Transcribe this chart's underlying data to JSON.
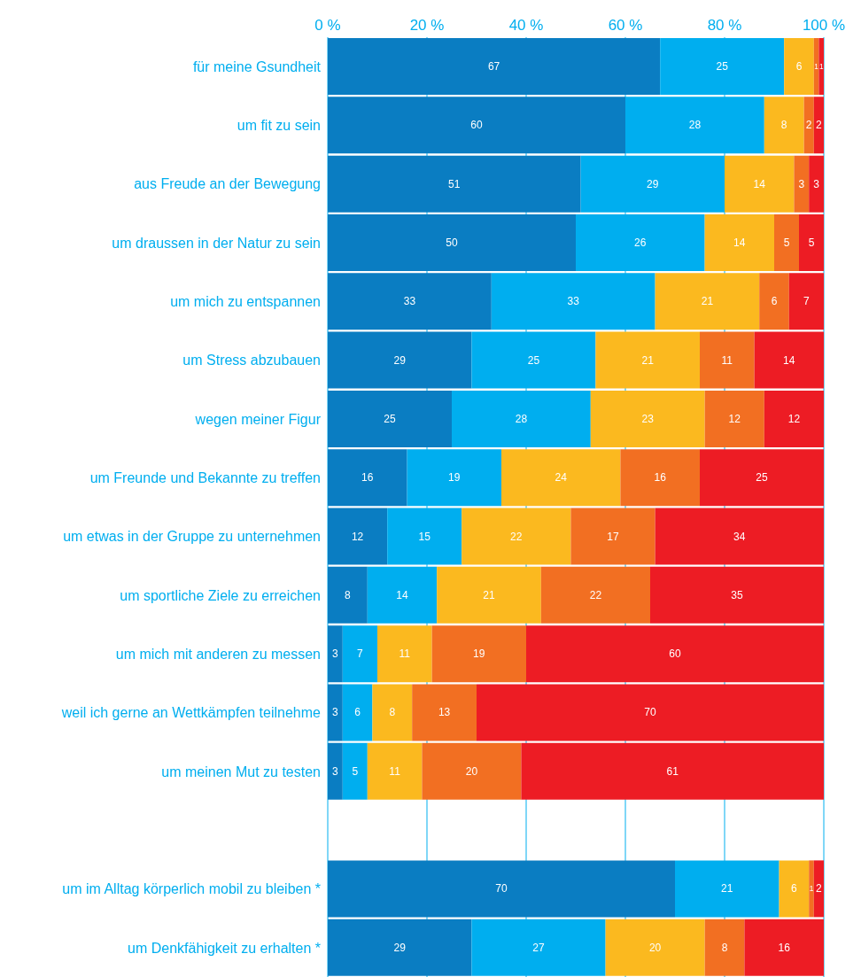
{
  "chart_data": {
    "type": "bar",
    "orientation": "horizontal",
    "stacked": true,
    "data_labels": true,
    "grid": "x",
    "legend": false,
    "categories": [
      "für meine Gsundheit",
      "um fit zu sein",
      "aus Freude an der Bewegung",
      "um draussen in der Natur zu sein",
      "um mich zu entspannen",
      "um Stress abzubauen",
      "wegen meiner Figur",
      "um Freunde und Bekannte zu treffen",
      "um etwas in der Gruppe zu unternehmen",
      "um sportliche Ziele zu erreichen",
      "um mich mit anderen zu messen",
      "weil ich gerne an Wettkämpfen teilnehme",
      "um meinen Mut zu testen",
      null,
      "um im Alltag körperlich mobil zu bleiben *",
      "um Denkfähigkeit zu erhalten *"
    ],
    "series": [
      {
        "color": "#0a7dc2",
        "values": [
          67,
          60,
          51,
          50,
          33,
          29,
          25,
          16,
          12,
          8,
          3,
          3,
          3,
          null,
          70,
          29
        ]
      },
      {
        "color": "#00aeef",
        "values": [
          25,
          28,
          29,
          26,
          33,
          25,
          28,
          19,
          15,
          14,
          7,
          6,
          5,
          null,
          21,
          27
        ]
      },
      {
        "color": "#fbb91f",
        "values": [
          6,
          8,
          14,
          14,
          21,
          21,
          23,
          24,
          22,
          21,
          11,
          8,
          11,
          null,
          6,
          20
        ]
      },
      {
        "color": "#f26f22",
        "values": [
          1,
          2,
          3,
          5,
          6,
          11,
          12,
          16,
          17,
          22,
          19,
          13,
          20,
          null,
          1,
          8
        ]
      },
      {
        "color": "#ed1c24",
        "values": [
          1,
          2,
          3,
          5,
          7,
          14,
          12,
          25,
          34,
          35,
          60,
          70,
          61,
          null,
          2,
          16
        ]
      }
    ],
    "xlim": [
      0,
      100
    ],
    "xticks": [
      {
        "value": 0,
        "label": "0 %"
      },
      {
        "value": 20,
        "label": "20 %"
      },
      {
        "value": 40,
        "label": "40 %"
      },
      {
        "value": 60,
        "label": "60 %"
      },
      {
        "value": 80,
        "label": "80 %"
      },
      {
        "value": 100,
        "label": "100 %"
      }
    ]
  }
}
